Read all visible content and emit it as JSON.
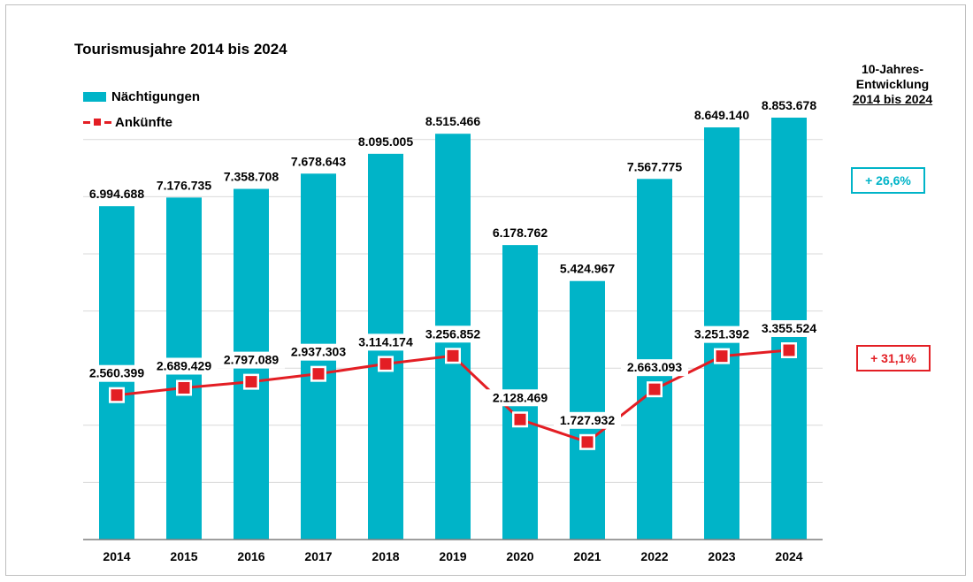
{
  "chart_data": {
    "type": "bar",
    "title": "Tourismusjahre 2014 bis 2024",
    "categories": [
      "2014",
      "2015",
      "2016",
      "2017",
      "2018",
      "2019",
      "2020",
      "2021",
      "2022",
      "2023",
      "2024"
    ],
    "series": [
      {
        "name": "Nächtigungen",
        "type": "bar",
        "values": [
          6994688,
          7176735,
          7358708,
          7678643,
          8095005,
          8515466,
          6178762,
          5424967,
          7567775,
          8649140,
          8853678
        ],
        "labels": [
          "6.994.688",
          "7.176.735",
          "7.358.708",
          "7.678.643",
          "8.095.005",
          "8.515.466",
          "6.178.762",
          "5.424.967",
          "7.567.775",
          "8.649.140",
          "8.853.678"
        ],
        "color": "#00b4c8"
      },
      {
        "name": "Ankünfte",
        "type": "line",
        "values": [
          2560399,
          2689429,
          2797089,
          2937303,
          3114174,
          3256852,
          2128469,
          1727932,
          2663093,
          3251392,
          3355524
        ],
        "labels": [
          "2.560.399",
          "2.689.429",
          "2.797.089",
          "2.937.303",
          "3.114.174",
          "3.256.852",
          "2.128.469",
          "1.727.932",
          "2.663.093",
          "3.251.392",
          "3.355.524"
        ],
        "color": "#e31e24"
      }
    ],
    "bar_ylim": [
      0,
      9500000
    ],
    "line_ylim": [
      0,
      4500000
    ],
    "grid": true,
    "legend_position": "top-left"
  },
  "development": {
    "header_line1": "10-Jahres-",
    "header_line2": "Entwicklung",
    "header_line3": "2014 bis 2024",
    "naechtigungen": "+ 26,6%",
    "ankuenfte": "+ 31,1%"
  }
}
